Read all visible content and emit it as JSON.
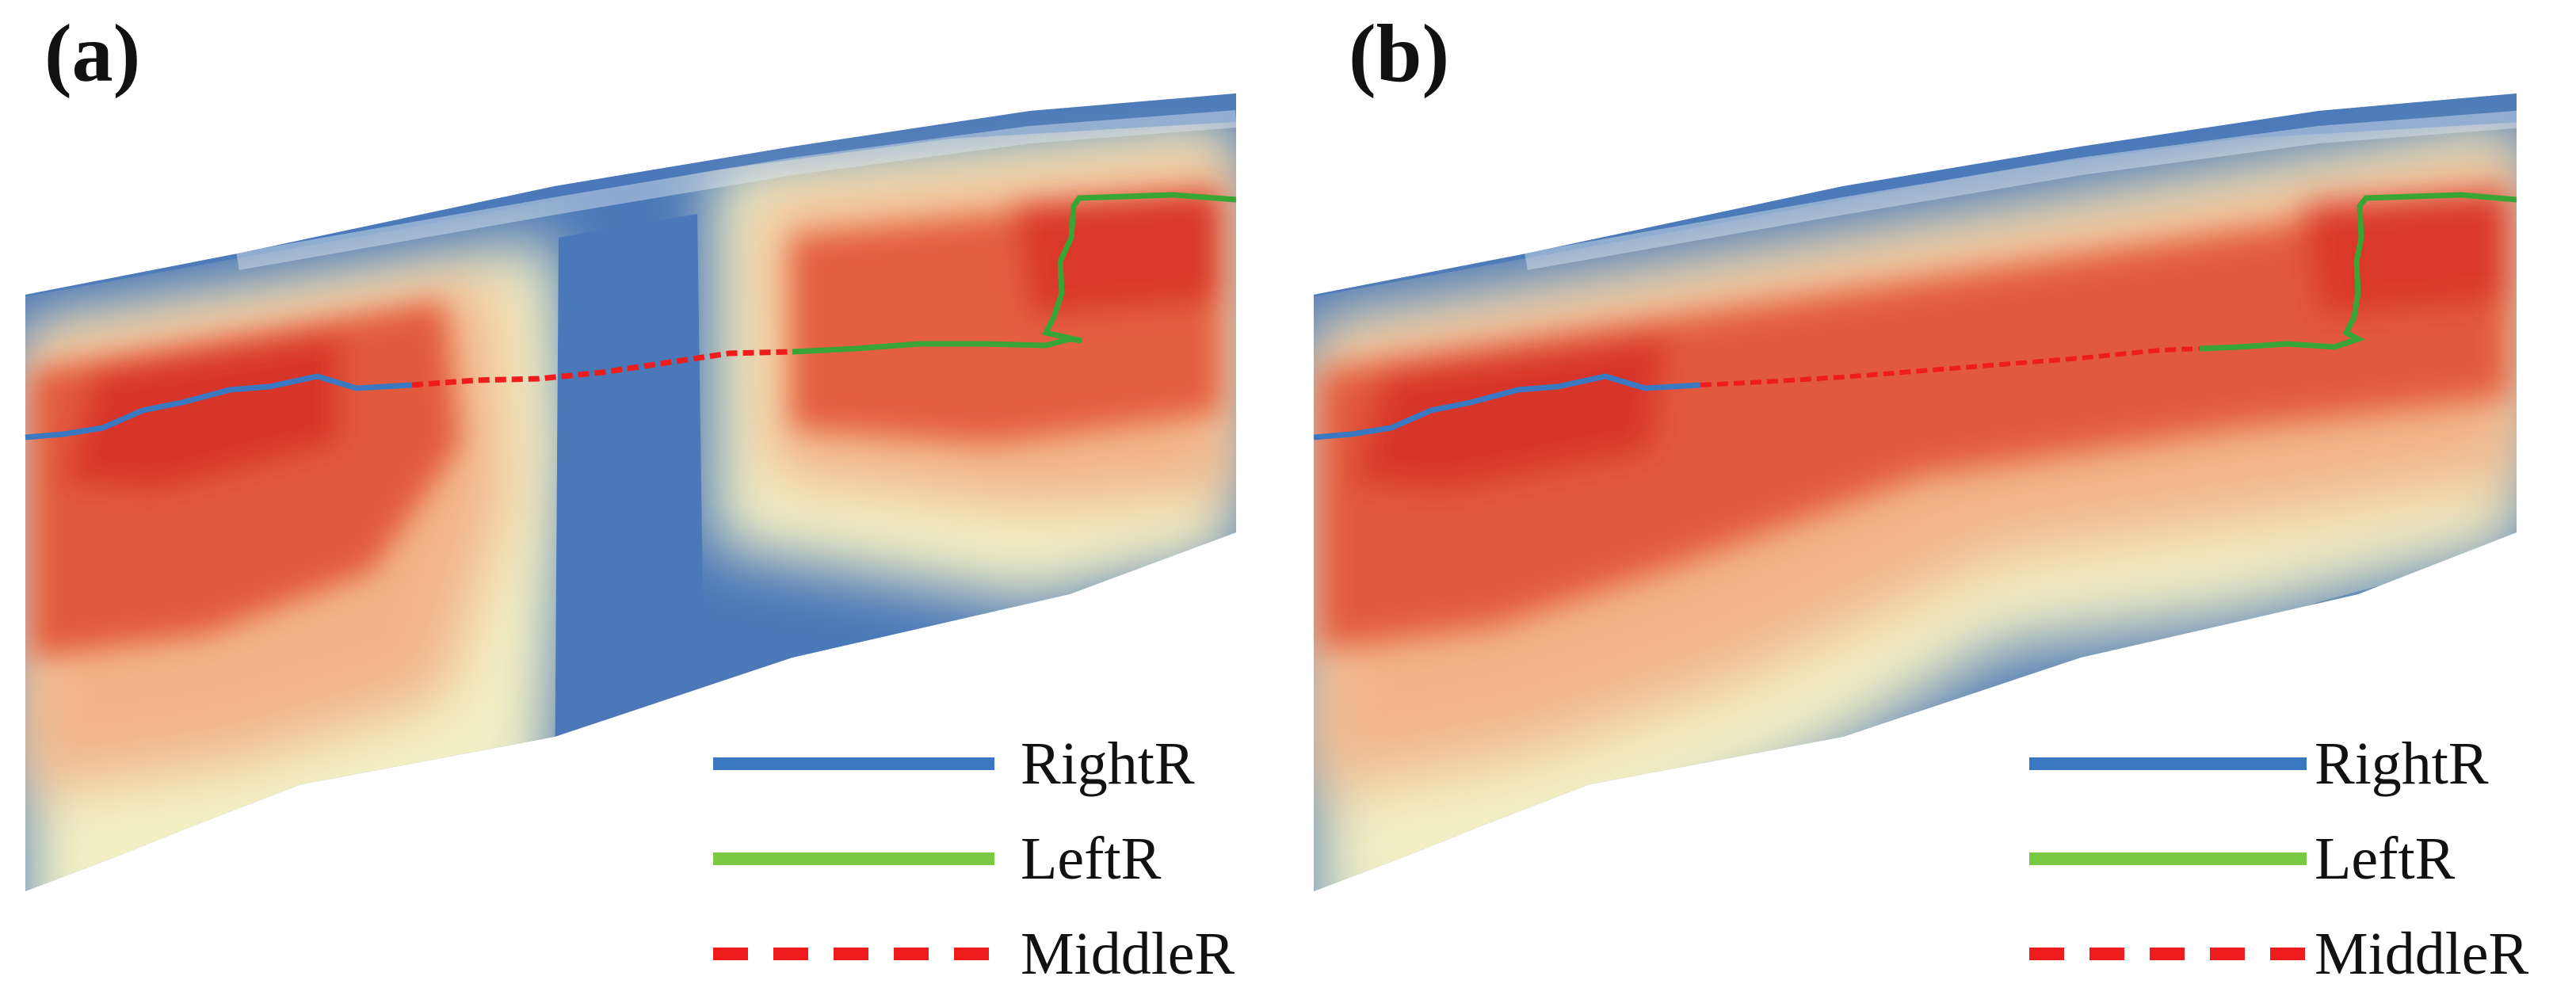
{
  "panels": [
    {
      "label": "(a)"
    },
    {
      "label": "(b)"
    }
  ],
  "legend": {
    "items": [
      {
        "name": "RightR",
        "color": "#3a78c2",
        "style": "solid"
      },
      {
        "name": "LeftR",
        "color": "#7ac943",
        "style": "solid"
      },
      {
        "name": "MiddleR",
        "color": "#ee1c1c",
        "style": "dashed"
      }
    ]
  },
  "colors": {
    "low": "#4a78b8",
    "mid": "#f6f4c4",
    "high": "#e0442e",
    "right_route": "#3a78c2",
    "left_route": "#3aa537",
    "middle_route": "#ee1c1c"
  }
}
